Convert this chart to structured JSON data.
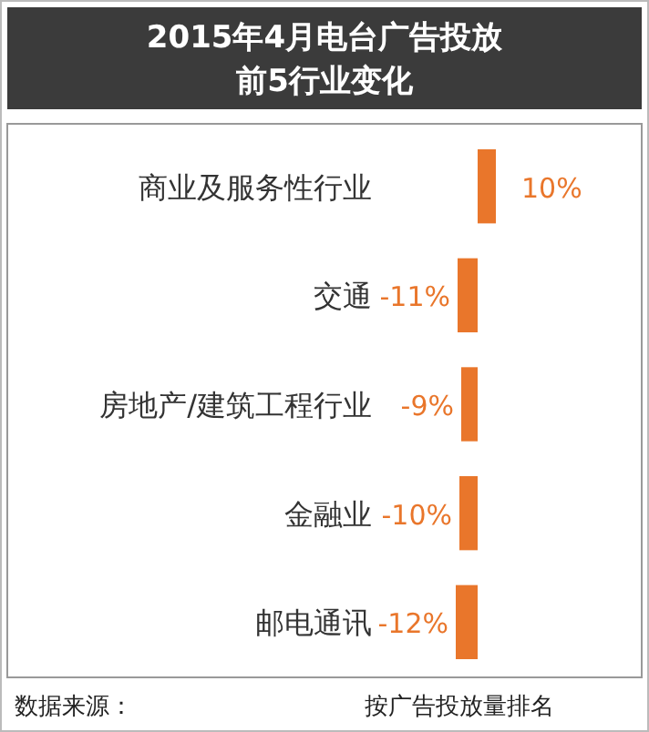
{
  "chart_data": {
    "type": "bar",
    "orientation": "horizontal",
    "title": "2015年4月电台广告投放前5行业变化",
    "categories": [
      "商业及服务性行业",
      "交通",
      "房地产/建筑工程行业",
      "金融业",
      "邮电通讯"
    ],
    "values": [
      10,
      -11,
      -9,
      -10,
      -12
    ],
    "value_labels": [
      "10%",
      "-11%",
      "-9%",
      "-10%",
      "-12%"
    ],
    "color": "#e9762b",
    "annotations": [
      "数据来源：",
      "按广告投放量排名"
    ]
  }
}
